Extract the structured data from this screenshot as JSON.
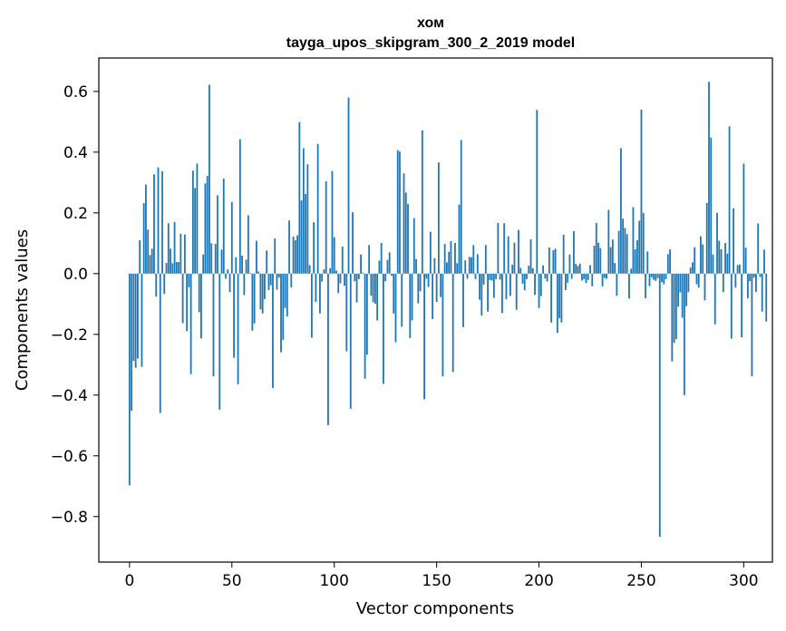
{
  "chart_data": {
    "type": "bar",
    "title": "хом",
    "subtitle": "tayga_upos_skipgram_300_2_2019 model",
    "xlabel": "Vector components",
    "ylabel": "Components values",
    "xlim": [
      -15,
      314
    ],
    "ylim": [
      -0.95,
      0.71
    ],
    "xticks": [
      0,
      50,
      100,
      150,
      200,
      250,
      300
    ],
    "xtick_labels": [
      "0",
      "50",
      "100",
      "150",
      "200",
      "250",
      "300"
    ],
    "yticks": [
      -0.8,
      -0.6,
      -0.4,
      -0.2,
      0.0,
      0.2,
      0.4,
      0.6
    ],
    "ytick_labels": [
      "−0.8",
      "−0.6",
      "−0.4",
      "−0.2",
      "0.0",
      "0.2",
      "0.4",
      "0.6"
    ],
    "bar_color": "#1f77b4",
    "values": [
      -0.697,
      -0.452,
      -0.287,
      -0.31,
      -0.28,
      0.11,
      -0.307,
      0.232,
      0.293,
      0.145,
      0.061,
      0.082,
      0.327,
      -0.076,
      0.35,
      -0.459,
      0.337,
      -0.067,
      0.035,
      0.166,
      0.082,
      0.034,
      0.17,
      0.038,
      0.038,
      0.131,
      -0.163,
      0.129,
      -0.189,
      -0.045,
      -0.331,
      0.339,
      0.282,
      0.362,
      -0.127,
      -0.213,
      0.063,
      0.297,
      0.322,
      0.622,
      0.1,
      -0.338,
      0.098,
      0.258,
      -0.448,
      0.079,
      0.313,
      -0.017,
      0.014,
      -0.061,
      0.236,
      -0.277,
      0.054,
      -0.364,
      0.443,
      0.059,
      -0.071,
      0.046,
      0.192,
      0.002,
      -0.188,
      -0.164,
      0.108,
      0.007,
      -0.118,
      -0.131,
      -0.084,
      0.076,
      -0.054,
      -0.038,
      -0.377,
      0.116,
      -0.053,
      -0.013,
      -0.259,
      -0.218,
      -0.113,
      -0.141,
      0.175,
      -0.045,
      0.122,
      0.11,
      0.126,
      0.499,
      0.241,
      0.413,
      0.262,
      0.36,
      0.028,
      -0.211,
      0.169,
      -0.093,
      0.427,
      -0.131,
      -0.026,
      0.014,
      0.304,
      -0.499,
      0.018,
      0.338,
      0.12,
      0.01,
      -0.064,
      -0.032,
      0.089,
      -0.04,
      -0.256,
      0.58,
      -0.445,
      0.202,
      -0.025,
      -0.095,
      -0.018,
      0.063,
      0.003,
      -0.346,
      -0.267,
      0.094,
      -0.073,
      -0.094,
      -0.099,
      -0.154,
      0.043,
      0.101,
      -0.363,
      -0.025,
      0.045,
      0.07,
      -0.007,
      -0.131,
      -0.226,
      0.407,
      0.402,
      -0.175,
      0.33,
      0.267,
      0.229,
      -0.212,
      -0.154,
      0.183,
      0.048,
      -0.098,
      -0.058,
      0.472,
      -0.414,
      -0.017,
      -0.044,
      0.138,
      -0.15,
      0.051,
      -0.093,
      0.366,
      -0.077,
      -0.338,
      0.098,
      0.037,
      0.072,
      0.107,
      -0.324,
      0.101,
      0.034,
      0.227,
      0.44,
      -0.176,
      0.044,
      -0.017,
      0.055,
      0.054,
      0.094,
      -0.018,
      0.064,
      -0.086,
      -0.138,
      -0.036,
      0.094,
      -0.125,
      -0.021,
      -0.023,
      -0.08,
      -0.018,
      0.167,
      -0.02,
      -0.13,
      0.166,
      -0.084,
      0.123,
      -0.073,
      0.029,
      0.102,
      -0.119,
      0.144,
      0.019,
      -0.033,
      -0.055,
      -0.018,
      0.026,
      0.113,
      0.018,
      -0.07,
      0.539,
      -0.113,
      -0.074,
      0.027,
      -0.016,
      -0.026,
      0.086,
      -0.161,
      0.077,
      0.082,
      -0.195,
      -0.147,
      -0.161,
      0.128,
      -0.054,
      -0.03,
      0.063,
      -0.017,
      0.14,
      0.032,
      0.025,
      0.033,
      -0.023,
      -0.018,
      -0.031,
      -0.021,
      0.028,
      -0.042,
      0.092,
      0.167,
      0.102,
      0.084,
      -0.042,
      -0.014,
      -0.017,
      0.21,
      0.087,
      0.112,
      0.035,
      -0.073,
      0.141,
      0.413,
      0.181,
      0.15,
      0.13,
      -0.082,
      0.016,
      0.219,
      0.08,
      0.11,
      0.174,
      0.54,
      0.2,
      -0.081,
      0.073,
      -0.041,
      -0.012,
      -0.02,
      -0.024,
      -0.015,
      -0.867,
      -0.028,
      -0.035,
      -0.018,
      0.064,
      0.08,
      -0.289,
      -0.228,
      -0.216,
      -0.109,
      -0.062,
      -0.145,
      -0.4,
      -0.107,
      -0.061,
      0.02,
      0.037,
      0.087,
      -0.035,
      -0.046,
      0.123,
      0.096,
      -0.088,
      0.233,
      0.632,
      0.448,
      0.063,
      -0.167,
      0.2,
      0.108,
      0.08,
      -0.061,
      0.101,
      0.066,
      0.485,
      -0.214,
      0.215,
      -0.046,
      0.028,
      0.03,
      -0.21,
      0.362,
      0.085,
      -0.081,
      -0.025,
      -0.338,
      -0.013,
      -0.06,
      0.165,
      -0.011,
      -0.125,
      0.079,
      -0.158
    ]
  }
}
